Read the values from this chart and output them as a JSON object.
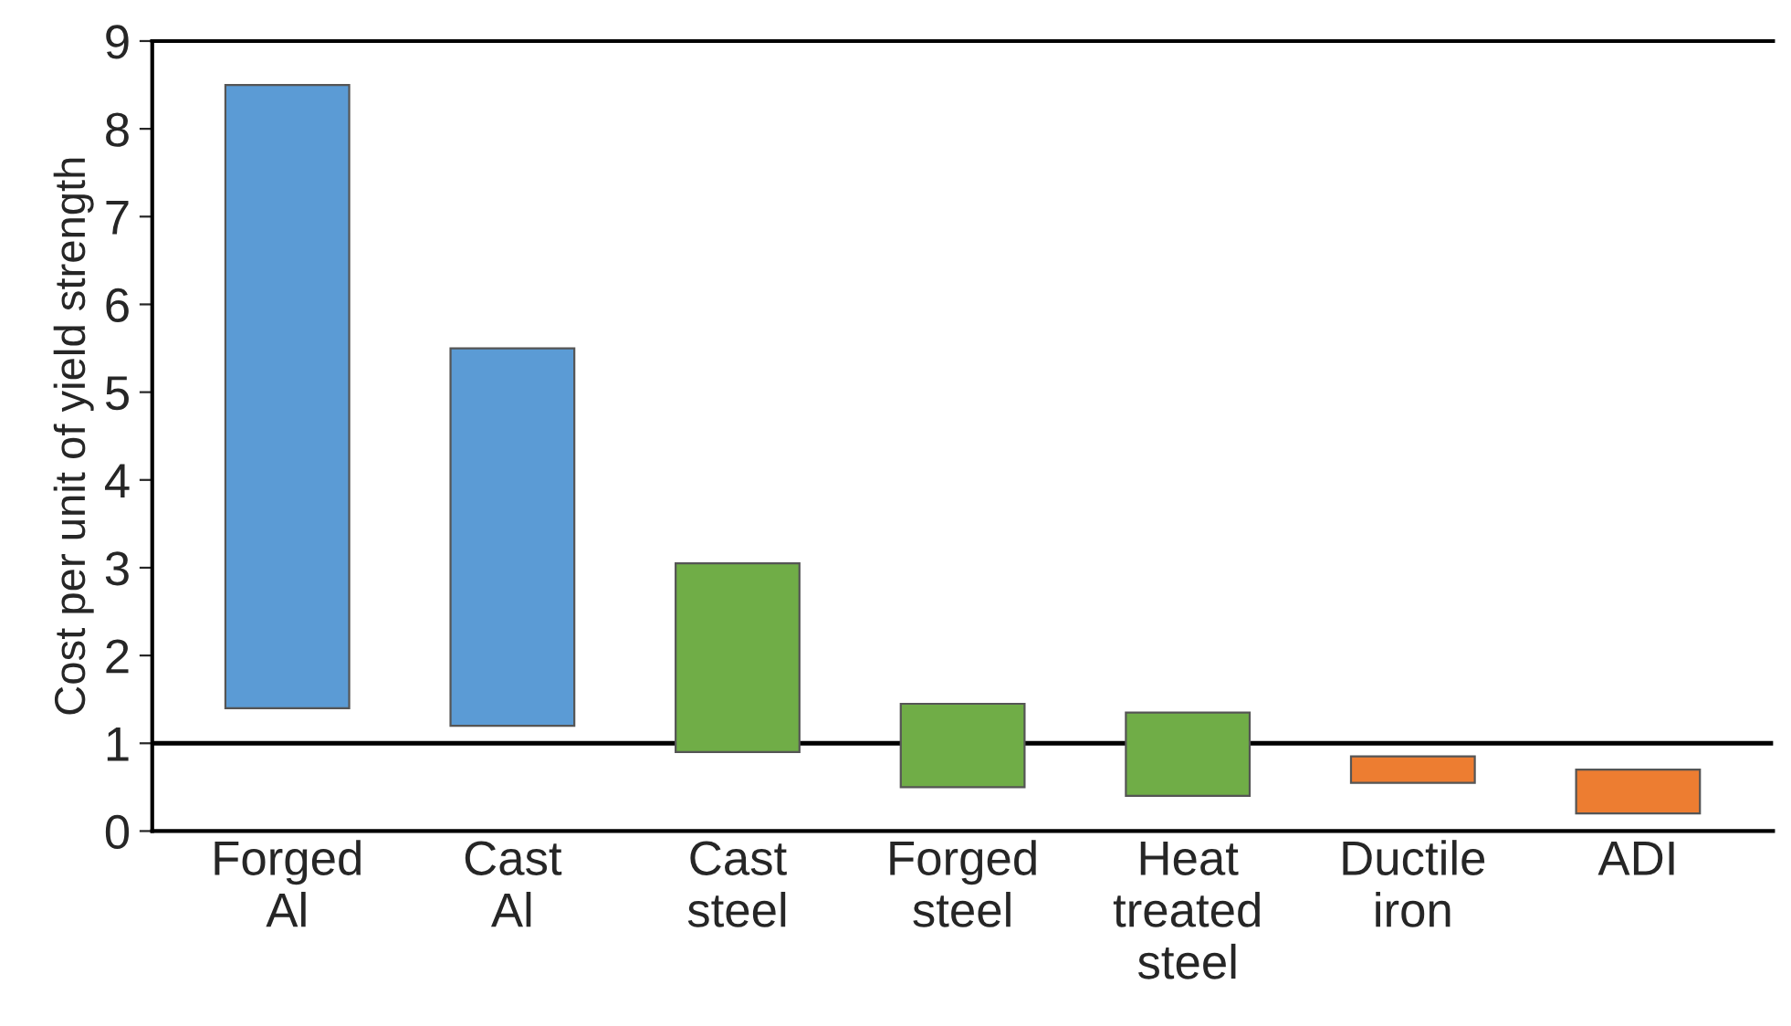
{
  "chart_data": {
    "type": "bar",
    "ylabel": "Cost per unit of yield strength",
    "categories": [
      "Forged\nAl",
      "Cast\nAl",
      "Cast\nsteel",
      "Forged\nsteel",
      "Heat\ntreated\nsteel",
      "Ductile\niron",
      "ADI"
    ],
    "base": [
      1.4,
      1.2,
      0.9,
      0.5,
      0.4,
      0.55,
      0.2
    ],
    "values": [
      7.1,
      4.3,
      2.15,
      0.95,
      0.95,
      0.3,
      0.5
    ],
    "colors": [
      "#5b9bd5",
      "#5b9bd5",
      "#70ad47",
      "#70ad47",
      "#70ad47",
      "#ed7d31",
      "#ed7d31"
    ],
    "ylim": [
      0,
      9
    ],
    "yticks": [
      0,
      1,
      2,
      3,
      4,
      5,
      6,
      7,
      8,
      9
    ],
    "ref_lines": [
      {
        "axis": "y",
        "value": 1,
        "label": null,
        "color": "#000000"
      }
    ],
    "grid": false,
    "legend": false
  }
}
